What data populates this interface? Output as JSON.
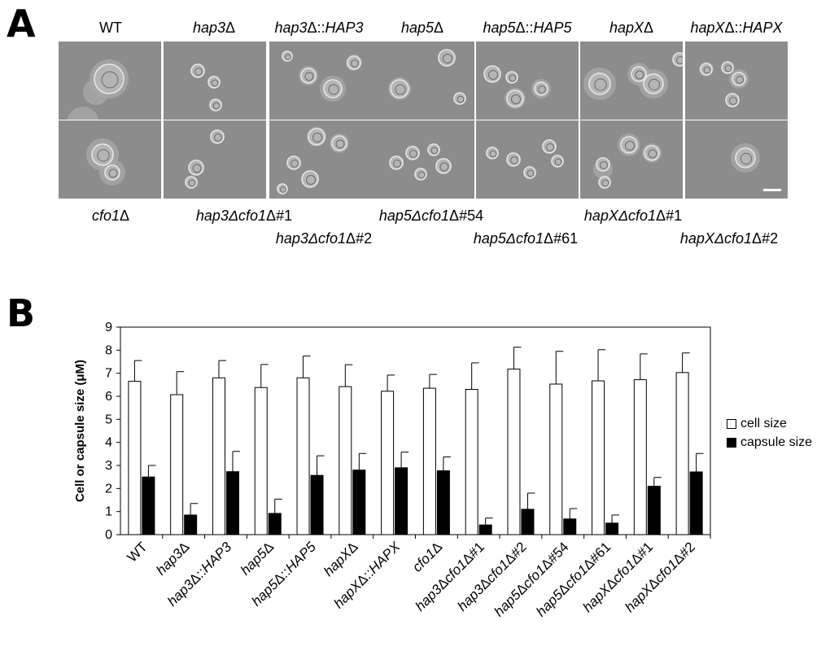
{
  "panel_a": {
    "letter": "A",
    "top_labels": [
      {
        "base": "WT",
        "italic": "",
        "suffix": ""
      },
      {
        "base": "",
        "italic": "hap3",
        "suffix": "Δ"
      },
      {
        "base": "",
        "italic": "hap3",
        "suffix": "Δ::",
        "italic2": "HAP3"
      },
      {
        "base": "",
        "italic": "hap5",
        "suffix": "Δ"
      },
      {
        "base": "",
        "italic": "hap5",
        "suffix": "Δ::",
        "italic2": "HAP5"
      },
      {
        "base": "",
        "italic": "hapX",
        "suffix": "Δ"
      },
      {
        "base": "",
        "italic": "hapX",
        "suffix": "Δ::",
        "italic2": "HAPX"
      }
    ],
    "bottom_labels_row1": [
      {
        "italic": "cfo1",
        "suffix": "Δ"
      },
      {
        "italic": "hap3Δcfo1",
        "suffix": "Δ#1"
      },
      {
        "italic": "hap5Δcfo1",
        "suffix": "Δ#54"
      },
      {
        "italic": "hapXΔcfo1",
        "suffix": "Δ#1"
      }
    ],
    "bottom_labels_row2": [
      {
        "italic": "hap3Δcfo1",
        "suffix": "Δ#2"
      },
      {
        "italic": "hap5Δcfo1",
        "suffix": "Δ#61"
      },
      {
        "italic": "hapXΔcfo1",
        "suffix": "Δ#2"
      }
    ]
  },
  "panel_b": {
    "letter": "B",
    "legend": {
      "cell": "cell size",
      "capsule": "capsule size"
    }
  },
  "chart_data": {
    "type": "bar",
    "ylabel": "Cell or capsule size (μM)",
    "ylim": [
      0,
      9
    ],
    "yticks": [
      0,
      1,
      2,
      3,
      4,
      5,
      6,
      7,
      8,
      9
    ],
    "categories": [
      "WT",
      "hap3Δ",
      "hap3Δ::HAP3",
      "hap5Δ",
      "hap5Δ::HAP5",
      "hapXΔ",
      "hapXΔ::HAPX",
      "cfo1Δ",
      "hap3Δcfo1Δ#1",
      "hap3Δcfo1Δ#2",
      "hap5Δcfo1Δ#54",
      "hap5Δcfo1Δ#61",
      "hapXΔcfo1Δ#1",
      "hapXΔcfo1Δ#2"
    ],
    "series": [
      {
        "name": "cell size",
        "color": "#ffffff",
        "values": [
          6.65,
          6.07,
          6.8,
          6.38,
          6.8,
          6.42,
          6.22,
          6.35,
          6.3,
          7.18,
          6.53,
          6.67,
          6.72,
          7.03
        ],
        "errors": [
          0.9,
          1.0,
          0.75,
          1.0,
          0.95,
          0.95,
          0.7,
          0.6,
          1.15,
          0.95,
          1.42,
          1.35,
          1.12,
          0.85
        ]
      },
      {
        "name": "capsule size",
        "color": "#000000",
        "values": [
          2.5,
          0.85,
          2.73,
          0.92,
          2.57,
          2.8,
          2.9,
          2.77,
          0.42,
          1.1,
          0.68,
          0.5,
          2.1,
          2.72
        ],
        "errors": [
          0.5,
          0.5,
          0.88,
          0.62,
          0.85,
          0.72,
          0.68,
          0.6,
          0.3,
          0.7,
          0.45,
          0.35,
          0.38,
          0.8
        ]
      }
    ],
    "grid": false,
    "legend_position": "right"
  }
}
